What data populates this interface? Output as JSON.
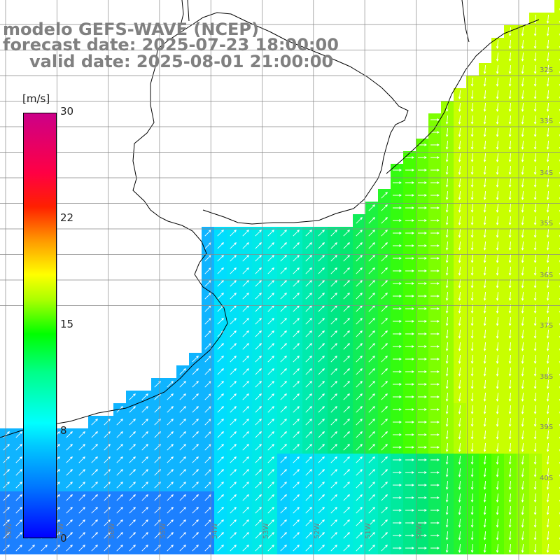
{
  "title": {
    "line1": "modelo GEFS-WAVE (NCEP)",
    "line2": "forecast date: 2025-07-23 18:00:00",
    "line3": "valid date: 2025-08-01 21:00:00"
  },
  "colorbar": {
    "unit": "[m/s]",
    "ticks": [
      "30",
      "22",
      "15",
      "8",
      "0"
    ]
  },
  "grid": {
    "lat_labels": [
      "32S",
      "33S",
      "34S",
      "35S",
      "36S",
      "37S",
      "38S",
      "39S",
      "40S"
    ],
    "lon_labels": [
      "58W",
      "57W",
      "56W",
      "55W",
      "54W",
      "53W",
      "52W",
      "51W",
      "50W"
    ]
  },
  "colors": {
    "ocean_base": "#22ccff",
    "land": "#ffffff",
    "coast": "#000000",
    "grid": "#888888",
    "arrow": "#ffffff"
  }
}
